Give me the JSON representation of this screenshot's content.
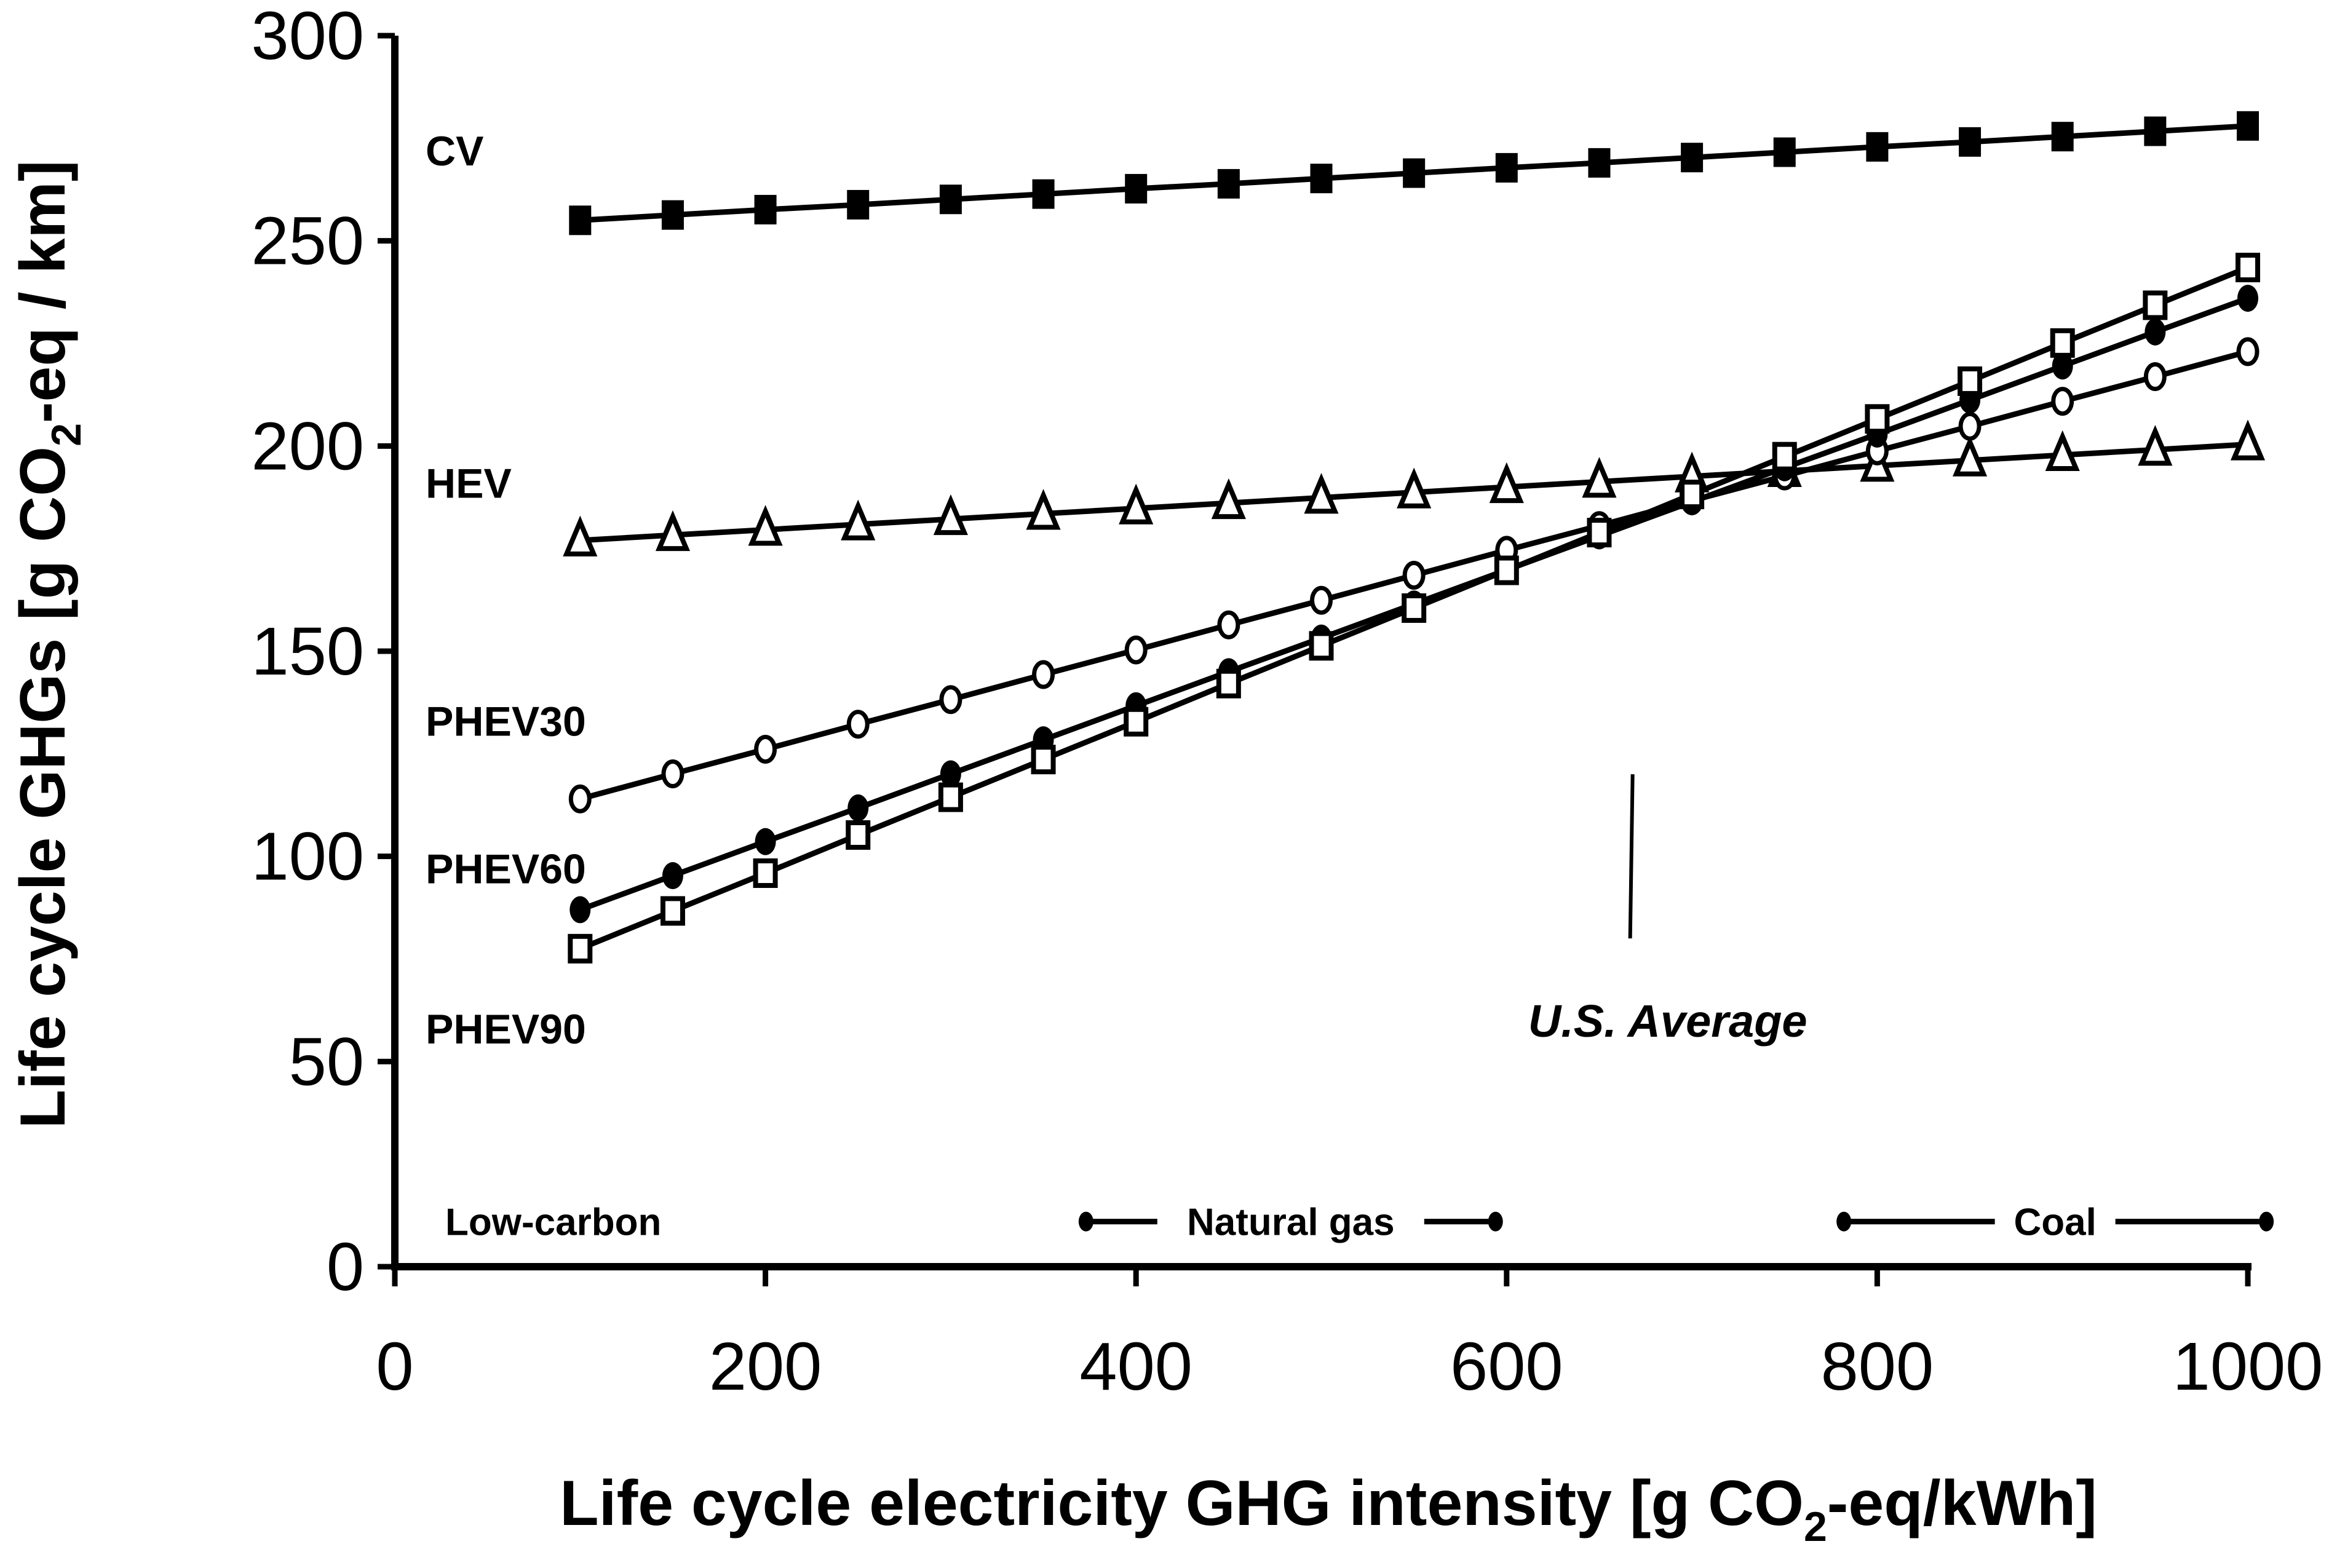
{
  "chart_data": {
    "type": "line",
    "title": "",
    "xlabel": "Life cycle electricity GHG intensity [g CO2-eq/kWh]",
    "xlabel_parts": [
      "Life cycle electricity GHG intensity [g CO",
      "2",
      "-eq/kWh]"
    ],
    "ylabel": "Life cycle GHGs [g CO2-eq / km]",
    "ylabel_parts": [
      "Life cycle GHGs [g CO",
      "2",
      "-eq / km]"
    ],
    "xlim": [
      0,
      1000
    ],
    "ylim": [
      0,
      300
    ],
    "xticks": [
      0,
      200,
      400,
      600,
      800,
      1000
    ],
    "yticks": [
      0,
      50,
      100,
      150,
      200,
      250,
      300
    ],
    "grid": false,
    "legend": "inline-labels-left",
    "x": [
      100,
      150,
      200,
      250,
      300,
      350,
      400,
      450,
      500,
      550,
      600,
      650,
      700,
      750,
      800,
      850,
      900,
      950,
      1000
    ],
    "series": [
      {
        "name": "CV",
        "marker": "filled-square",
        "values": [
          255.0,
          256.3,
          257.6,
          258.8,
          260.1,
          261.4,
          262.7,
          263.9,
          265.2,
          266.5,
          267.8,
          269.0,
          270.3,
          271.6,
          272.9,
          274.1,
          275.4,
          276.7,
          278.0
        ]
      },
      {
        "name": "HEV",
        "marker": "open-triangle",
        "values": [
          177.0,
          178.3,
          179.6,
          180.9,
          182.2,
          183.5,
          184.8,
          186.1,
          187.4,
          188.7,
          190.0,
          191.3,
          192.6,
          193.9,
          195.2,
          196.5,
          197.8,
          199.1,
          200.4
        ]
      },
      {
        "name": "PHEV30",
        "marker": "open-circle",
        "values": [
          114.0,
          120.1,
          126.1,
          132.2,
          138.2,
          144.3,
          150.3,
          156.4,
          162.4,
          168.5,
          174.6,
          180.6,
          186.7,
          192.7,
          198.8,
          204.8,
          210.9,
          216.9,
          223.0
        ]
      },
      {
        "name": "PHEV60",
        "marker": "filled-circle",
        "values": [
          87.0,
          95.3,
          103.6,
          111.8,
          120.1,
          128.4,
          136.7,
          145.0,
          153.2,
          161.5,
          169.8,
          178.1,
          186.4,
          194.7,
          202.9,
          211.2,
          219.5,
          227.8,
          236.0
        ]
      },
      {
        "name": "PHEV90",
        "marker": "open-square",
        "values": [
          77.5,
          86.7,
          95.9,
          105.2,
          114.4,
          123.6,
          132.8,
          142.1,
          151.3,
          160.5,
          169.7,
          178.9,
          188.2,
          197.4,
          206.6,
          215.8,
          225.1,
          234.3,
          243.5
        ]
      }
    ],
    "series_label_y": {
      "CV": 272,
      "HEV": 191,
      "PHEV30": 133,
      "PHEV60": 97,
      "PHEV90": 58
    },
    "annotations": [
      {
        "text": "U.S. Average",
        "x": 667,
        "line_y": [
          80,
          120
        ]
      }
    ],
    "ranges": [
      {
        "name": "Low-carbon",
        "from": 0,
        "to": 0,
        "y": 11
      },
      {
        "name": "Natural gas",
        "from": 373,
        "to": 594,
        "y": 11
      },
      {
        "name": "Coal",
        "from": 782,
        "to": 1010,
        "y": 11
      }
    ]
  }
}
